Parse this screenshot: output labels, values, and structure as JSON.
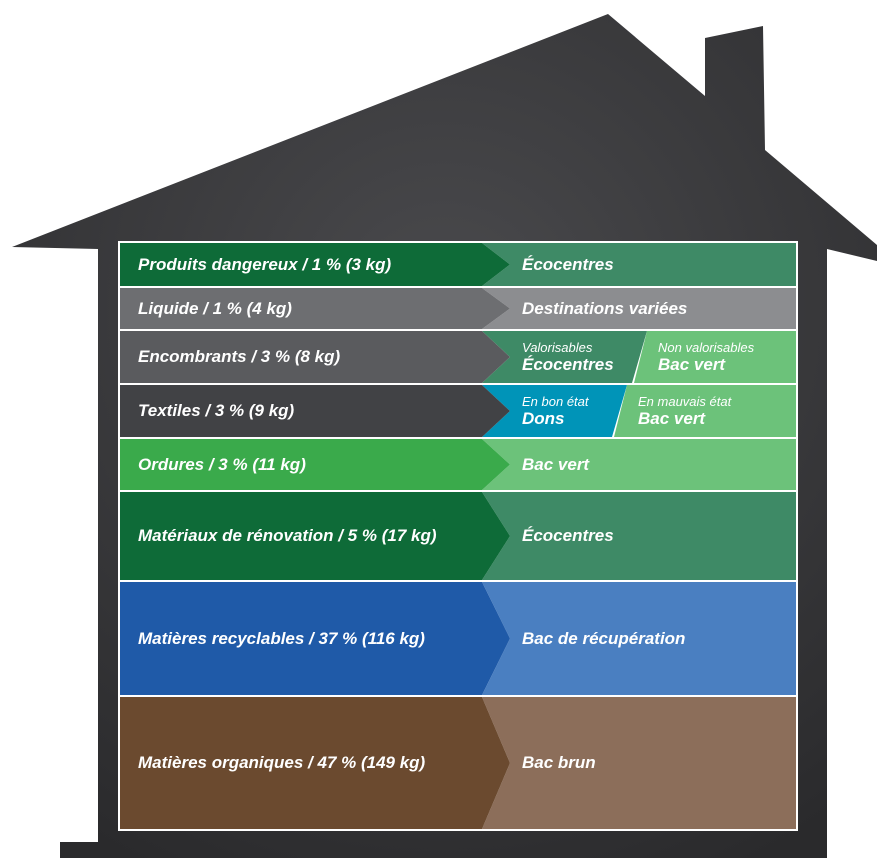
{
  "colors": {
    "house": "#3a3a3c",
    "dangerous": "#0e6b38",
    "ecocentres": "#3e8a66",
    "liquid": "#6d6e71",
    "liquid_dest": "#8c8d90",
    "bulky": "#5a5b5e",
    "textiles": "#414245",
    "dons": "#0094b8",
    "bac_vert": "#6cc27a",
    "garbage": "#3aaa4b",
    "recyclables": "#1f5aa8",
    "recup": "#4a7fc1",
    "organics": "#6b4a2f",
    "bac_brun": "#8c6e5a"
  },
  "rows": [
    {
      "label": "Produits dangereux / 1 % (3 kg)",
      "destination": "Écocentres"
    },
    {
      "label": "Liquide / 1 % (4 kg)",
      "destination": "Destinations variées"
    },
    {
      "label": "Encombrants / 3 % (8 kg)",
      "split": [
        {
          "small": "Valorisables",
          "big": "Écocentres"
        },
        {
          "small": "Non valorisables",
          "big": "Bac vert"
        }
      ]
    },
    {
      "label": "Textiles / 3 % (9 kg)",
      "split": [
        {
          "small": "En bon état",
          "big": "Dons"
        },
        {
          "small": "En mauvais état",
          "big": "Bac vert"
        }
      ]
    },
    {
      "label": "Ordures / 3 % (11 kg)",
      "destination": "Bac vert"
    },
    {
      "label": "Matériaux de rénovation / 5 % (17 kg)",
      "destination": "Écocentres"
    },
    {
      "label": "Matières recyclables / 37 % (116 kg)",
      "destination": "Bac de récupération"
    },
    {
      "label": "Matières organiques / 47 % (149 kg)",
      "destination": "Bac brun"
    }
  ]
}
